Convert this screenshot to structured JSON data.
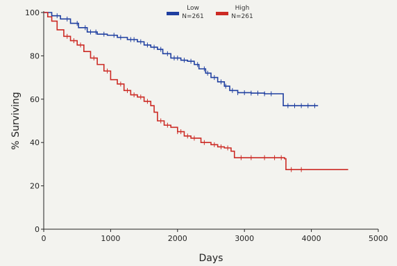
{
  "chart_data": {
    "type": "line",
    "xlabel": "Days",
    "ylabel": "% Surviving",
    "xlim": [
      0,
      5000
    ],
    "ylim": [
      0,
      100
    ],
    "xticks": [
      0,
      1000,
      2000,
      3000,
      4000,
      5000
    ],
    "yticks": [
      0,
      20,
      40,
      60,
      80,
      100
    ],
    "grid": false,
    "legend_position": "top-center",
    "series": [
      {
        "name": "Low",
        "n_label": "N=261",
        "color": "#1f3fa0",
        "points": [
          [
            0,
            100
          ],
          [
            120,
            98.5
          ],
          [
            250,
            97
          ],
          [
            400,
            95
          ],
          [
            520,
            93
          ],
          [
            650,
            91
          ],
          [
            800,
            90
          ],
          [
            950,
            89.5
          ],
          [
            1100,
            88.5
          ],
          [
            1250,
            87.5
          ],
          [
            1400,
            86.5
          ],
          [
            1500,
            85
          ],
          [
            1600,
            84
          ],
          [
            1700,
            83
          ],
          [
            1780,
            81
          ],
          [
            1900,
            79
          ],
          [
            2050,
            78
          ],
          [
            2150,
            77.5
          ],
          [
            2250,
            76
          ],
          [
            2320,
            74
          ],
          [
            2420,
            72
          ],
          [
            2500,
            70
          ],
          [
            2600,
            68
          ],
          [
            2700,
            66
          ],
          [
            2780,
            64
          ],
          [
            2900,
            63
          ],
          [
            3100,
            62.8
          ],
          [
            3300,
            62.5
          ],
          [
            3500,
            62.5
          ],
          [
            3580,
            57
          ],
          [
            3800,
            57
          ],
          [
            4100,
            57
          ]
        ],
        "censor_x": [
          200,
          350,
          500,
          620,
          700,
          780,
          900,
          1050,
          1150,
          1300,
          1350,
          1450,
          1550,
          1650,
          1750,
          1850,
          1950,
          2000,
          2100,
          2200,
          2300,
          2400,
          2450,
          2550,
          2650,
          2720,
          2820,
          2900,
          3000,
          3100,
          3200,
          3300,
          3400,
          3650,
          3750,
          3850,
          3950,
          4050
        ]
      },
      {
        "name": "High",
        "n_label": "N=261",
        "color": "#cc2a24",
        "points": [
          [
            0,
            100
          ],
          [
            60,
            98
          ],
          [
            120,
            96
          ],
          [
            200,
            92
          ],
          [
            300,
            89
          ],
          [
            400,
            87
          ],
          [
            500,
            85
          ],
          [
            600,
            82
          ],
          [
            700,
            79
          ],
          [
            800,
            76
          ],
          [
            900,
            73
          ],
          [
            1000,
            69
          ],
          [
            1100,
            67
          ],
          [
            1200,
            64
          ],
          [
            1300,
            62
          ],
          [
            1400,
            61
          ],
          [
            1500,
            59
          ],
          [
            1600,
            57
          ],
          [
            1650,
            54
          ],
          [
            1700,
            50
          ],
          [
            1800,
            48
          ],
          [
            1900,
            47
          ],
          [
            2000,
            45
          ],
          [
            2100,
            43
          ],
          [
            2200,
            42
          ],
          [
            2350,
            40
          ],
          [
            2500,
            39
          ],
          [
            2600,
            38
          ],
          [
            2700,
            37.5
          ],
          [
            2800,
            36
          ],
          [
            2850,
            33
          ],
          [
            3200,
            33
          ],
          [
            3600,
            32.5
          ],
          [
            3620,
            27.5
          ],
          [
            3900,
            27.5
          ],
          [
            4300,
            27.5
          ],
          [
            4550,
            27.5
          ]
        ],
        "censor_x": [
          350,
          450,
          550,
          750,
          950,
          1150,
          1250,
          1350,
          1450,
          1550,
          1750,
          1850,
          2000,
          2050,
          2150,
          2250,
          2400,
          2550,
          2650,
          2750,
          2950,
          3100,
          3300,
          3450,
          3550,
          3700,
          3850
        ]
      }
    ]
  }
}
